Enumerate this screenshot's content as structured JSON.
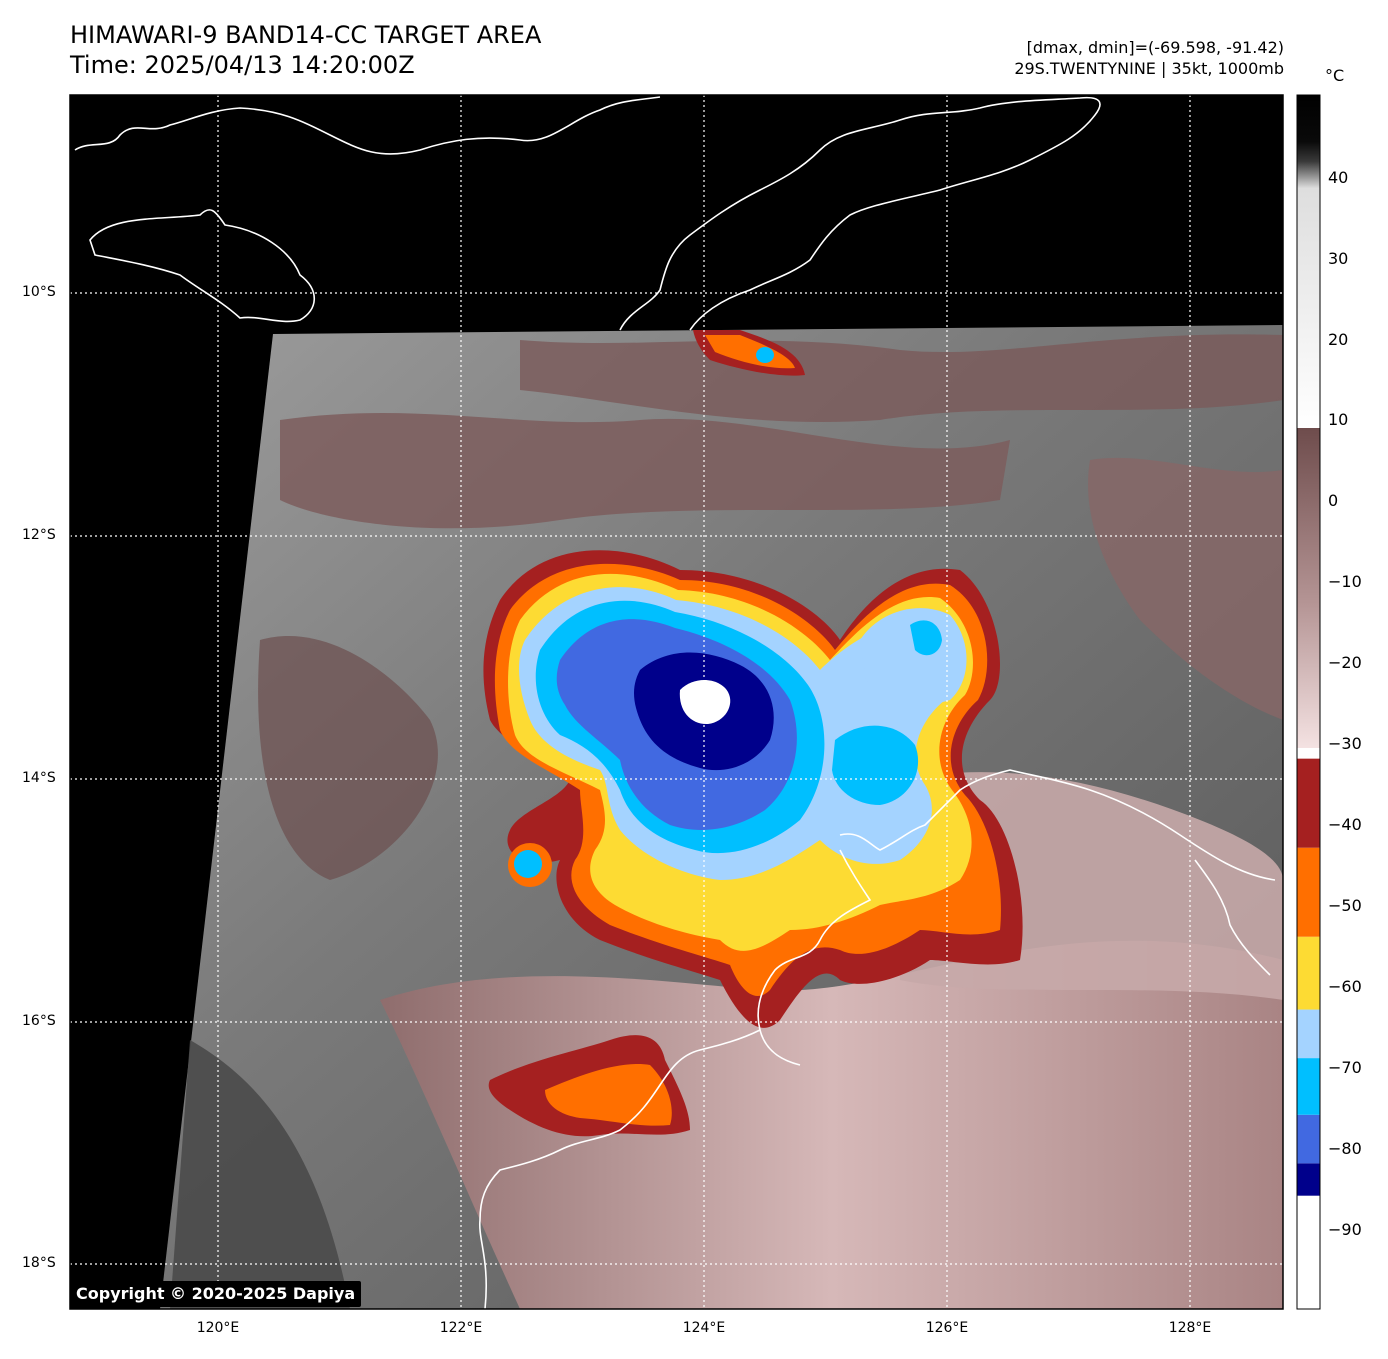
{
  "header": {
    "title_line1": "HIMAWARI-9 BAND14-CC TARGET AREA",
    "title_line2": "Time: 2025/04/13 14:20:00Z",
    "info_line1": "[dmax, dmin]=(-69.598, -91.42)",
    "info_line2": "29S.TWENTYNINE | 35kt, 1000mb"
  },
  "axes": {
    "lat_labels": [
      "10°S",
      "12°S",
      "14°S",
      "16°S",
      "18°S"
    ],
    "lon_labels": [
      "120°E",
      "122°E",
      "124°E",
      "126°E",
      "128°E"
    ]
  },
  "colorbar": {
    "unit": "°C",
    "tick_labels": [
      "40",
      "30",
      "20",
      "10",
      "0",
      "−10",
      "−20",
      "−30",
      "−40",
      "−50",
      "−60",
      "−70",
      "−80",
      "−90"
    ],
    "bands": [
      {
        "from": -100,
        "to": -86,
        "color": "#ffffff"
      },
      {
        "from": -86,
        "to": -82,
        "color": "#00008b"
      },
      {
        "from": -82,
        "to": -76,
        "color": "#4169e1"
      },
      {
        "from": -76,
        "to": -69,
        "color": "#00bfff"
      },
      {
        "from": -69,
        "to": -63,
        "color": "#a4d3ff"
      },
      {
        "from": -63,
        "to": -54,
        "color": "#fddb33"
      },
      {
        "from": -54,
        "to": -43,
        "color": "#ff6f00"
      },
      {
        "from": -43,
        "to": -32,
        "color": "#a52020"
      }
    ]
  },
  "copyright": "Copyright © 2020-2025 Dapiya",
  "colors": {
    "night": "#000000",
    "cold_ring": "#a52020",
    "orange": "#ff6f00",
    "yellow": "#fddb33",
    "pale_blue": "#a4d3ff",
    "cyan": "#00bfff",
    "royal_blue": "#4169e1",
    "navy": "#00008b",
    "warm_brown": "#8a6868",
    "pink": "#e9cfcf"
  }
}
